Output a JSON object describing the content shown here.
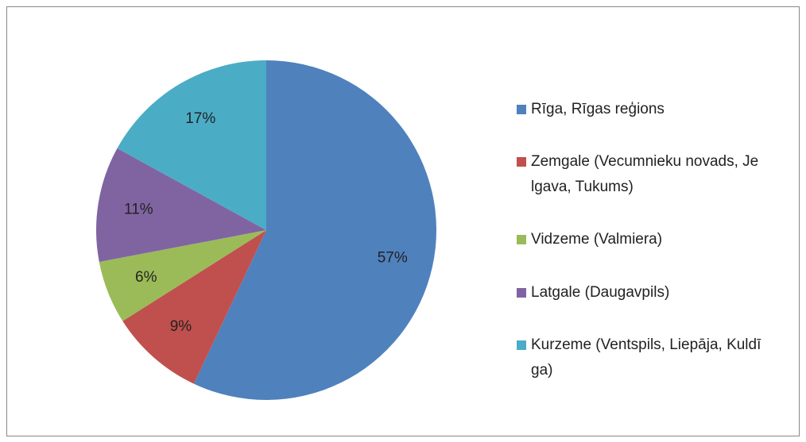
{
  "chart_data": {
    "type": "pie",
    "categories": [
      "Rīga, Rīgas reģions",
      "Zemgale (Vecumnieku novads, Jelgava, Tukums)",
      "Vidzeme (Valmiera)",
      "Latgale (Daugavpils)",
      "Kurzeme (Ventspils, Liepāja, Kuldīga)"
    ],
    "values": [
      57,
      9,
      6,
      11,
      17
    ],
    "value_labels": [
      "57%",
      "9%",
      "6%",
      "11%",
      "17%"
    ],
    "colors": [
      "#4f81bd",
      "#c0504d",
      "#9bbb59",
      "#8064a2",
      "#4bacc6"
    ],
    "legend": "right"
  }
}
